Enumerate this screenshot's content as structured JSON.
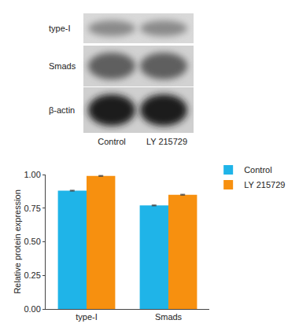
{
  "blot": {
    "rows": [
      "type-I",
      "Smads",
      "β-actin"
    ],
    "lanes": [
      "Control",
      "LY 215729"
    ]
  },
  "chart_data": {
    "type": "bar",
    "categories": [
      "type-I",
      "Smads"
    ],
    "series": [
      {
        "name": "Control",
        "color": "#1fb4e8",
        "values": [
          0.88,
          0.77
        ],
        "errors": [
          0.003,
          0.003
        ]
      },
      {
        "name": "LY 215729",
        "color": "#f7900f",
        "values": [
          0.99,
          0.85
        ],
        "errors": [
          0.003,
          0.003
        ]
      }
    ],
    "y_label": "Relative protein expression",
    "ylim": [
      0,
      1.0
    ],
    "yticks": [
      {
        "value": 0,
        "label": "0.00"
      },
      {
        "value": 0.25,
        "label": "0.25"
      },
      {
        "value": 0.5,
        "label": "0.50"
      },
      {
        "value": 0.75,
        "label": "0.75"
      },
      {
        "value": 1.0,
        "label": "1.00"
      }
    ],
    "grid": false,
    "legend": "top-right"
  }
}
